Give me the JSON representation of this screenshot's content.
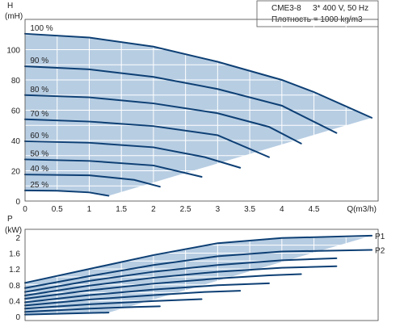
{
  "colors": {
    "fill": "#b7cde2",
    "curve": "#0d3f74",
    "grid": "#ffffff",
    "frame": "#444444"
  },
  "header": {
    "model": "CME3-8",
    "supply": "3* 400 V, 50 Hz",
    "density": "Плотность = 1000 kg/m3"
  },
  "chart_data": [
    {
      "type": "line",
      "name_key": "head-chart",
      "xlabel": "Q(m3/h)",
      "ylabel": "H",
      "yunit": "(mH)",
      "xlim": [
        0,
        5.5
      ],
      "ylim": [
        0,
        120
      ],
      "xticks": [
        "0",
        "0.5",
        "1",
        "1.5",
        "2",
        "2.5",
        "3",
        "3.5",
        "4",
        "4.5"
      ],
      "yticks": [
        "0",
        "20",
        "40",
        "60",
        "80",
        "100"
      ],
      "grid": true,
      "series": [
        {
          "name": "100 %",
          "x": [
            0,
            1,
            2,
            3,
            4,
            4.5,
            5.4
          ],
          "y": [
            110.5,
            108,
            102,
            92,
            80,
            72,
            55
          ]
        },
        {
          "name": "90 %",
          "x": [
            0,
            1,
            2,
            3,
            4,
            4.85
          ],
          "y": [
            89,
            87,
            82,
            74,
            63,
            45
          ]
        },
        {
          "name": "80 %",
          "x": [
            0,
            1,
            2,
            3,
            3.8,
            4.3
          ],
          "y": [
            70,
            68.5,
            64.5,
            58,
            49,
            38
          ]
        },
        {
          "name": "70 %",
          "x": [
            0,
            1,
            2,
            3,
            3.8
          ],
          "y": [
            54,
            52.5,
            49.5,
            43.5,
            29
          ]
        },
        {
          "name": "60 %",
          "x": [
            0,
            1,
            2,
            2.8,
            3.35
          ],
          "y": [
            39.5,
            38.5,
            35.5,
            29,
            22
          ]
        },
        {
          "name": "50 %",
          "x": [
            0,
            1,
            2,
            2.75
          ],
          "y": [
            27.5,
            26.5,
            23.5,
            16
          ]
        },
        {
          "name": "40 %",
          "x": [
            0,
            1,
            1.7,
            2.1
          ],
          "y": [
            17.5,
            17,
            14,
            9.5
          ]
        },
        {
          "name": "25 %",
          "x": [
            0,
            0.5,
            1,
            1.3
          ],
          "y": [
            7,
            6.8,
            5.7,
            3.5
          ]
        }
      ]
    },
    {
      "type": "line",
      "name_key": "power-chart",
      "xlabel": "",
      "ylabel": "P",
      "yunit": "(kW)",
      "xlim": [
        0,
        5.5
      ],
      "ylim": [
        -0.1,
        2.2
      ],
      "yticks": [
        "0",
        "0.4",
        "0.8",
        "1.2",
        "1.6",
        "2"
      ],
      "grid": true,
      "series": [
        {
          "name": "P1",
          "x": [
            0,
            1,
            2,
            3,
            4,
            5.4
          ],
          "y": [
            0.85,
            1.2,
            1.55,
            1.85,
            1.98,
            2.04
          ]
        },
        {
          "name": "P2",
          "x": [
            0,
            1,
            2,
            3,
            4,
            5.4
          ],
          "y": [
            0.72,
            1.02,
            1.3,
            1.52,
            1.64,
            1.68
          ]
        }
      ],
      "bands": [
        {
          "x": [
            0,
            1,
            2,
            3,
            4,
            4.85
          ],
          "y": [
            0.62,
            0.9,
            1.13,
            1.3,
            1.42,
            1.47
          ]
        },
        {
          "x": [
            0,
            1,
            2,
            3,
            4,
            4.85
          ],
          "y": [
            0.53,
            0.78,
            0.98,
            1.13,
            1.23,
            1.27
          ]
        },
        {
          "x": [
            0,
            1,
            2,
            3,
            3.8,
            4.3
          ],
          "y": [
            0.45,
            0.66,
            0.83,
            0.96,
            1.04,
            1.07
          ]
        },
        {
          "x": [
            0,
            1,
            2,
            3,
            3.8
          ],
          "y": [
            0.36,
            0.54,
            0.68,
            0.79,
            0.84
          ]
        },
        {
          "x": [
            0,
            1,
            2,
            2.8,
            3.35
          ],
          "y": [
            0.28,
            0.43,
            0.54,
            0.62,
            0.65
          ]
        },
        {
          "x": [
            0,
            1,
            2,
            2.75
          ],
          "y": [
            0.2,
            0.31,
            0.39,
            0.44
          ]
        },
        {
          "x": [
            0,
            1,
            1.7,
            2.1
          ],
          "y": [
            0.12,
            0.2,
            0.24,
            0.26
          ]
        },
        {
          "x": [
            0,
            0.5,
            1,
            1.3
          ],
          "y": [
            0.05,
            0.07,
            0.09,
            0.1
          ]
        }
      ]
    }
  ]
}
